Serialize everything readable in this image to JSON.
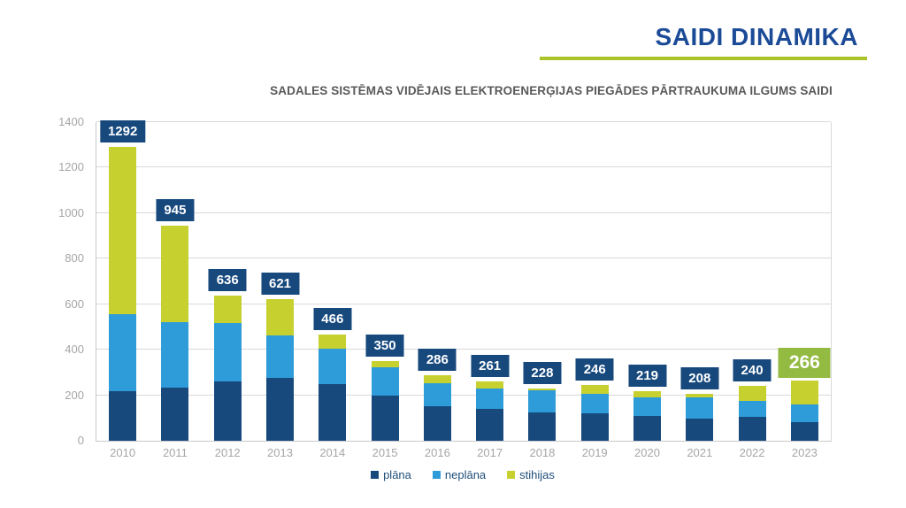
{
  "header": {
    "title": "SAIDI DINAMIKA",
    "title_color": "#1B4A97",
    "underline_color": "#A9C32B"
  },
  "subtitle": "SADALES SISTĒMAS VIDĒJAIS ELEKTROENERĢIJAS PIEGĀDES PĀRTRAUKUMA ILGUMS SAIDI",
  "colors": {
    "label_box": "#17497D",
    "label_box_highlight": "#93BA41",
    "label_text": "#ffffff",
    "axis_text": "#A6A6A6",
    "gridline": "#D9D9D9",
    "legend_text": "#1F4E79",
    "subtitle_text": "#595959"
  },
  "chart_data": {
    "type": "bar",
    "stacked": true,
    "title": "SAIDI DINAMIKA",
    "subtitle": "SADALES SISTĒMAS VIDĒJAIS ELEKTROENERĢIJAS PIEGĀDES PĀRTRAUKUMA ILGUMS SAIDI",
    "categories": [
      "2010",
      "2011",
      "2012",
      "2013",
      "2014",
      "2015",
      "2016",
      "2017",
      "2018",
      "2019",
      "2020",
      "2021",
      "2022",
      "2023"
    ],
    "series": [
      {
        "name": "plāna",
        "color": "#17497D",
        "values": [
          218,
          232,
          261,
          278,
          250,
          200,
          152,
          140,
          124,
          120,
          110,
          98,
          107,
          83
        ]
      },
      {
        "name": "neplāna",
        "color": "#2E9CD8",
        "values": [
          337,
          290,
          257,
          185,
          155,
          123,
          99,
          90,
          96,
          85,
          80,
          92,
          68,
          78
        ]
      },
      {
        "name": "stihijas",
        "color": "#C6D02F",
        "values": [
          737,
          423,
          118,
          158,
          61,
          27,
          35,
          31,
          8,
          41,
          29,
          18,
          65,
          105
        ]
      }
    ],
    "totals": [
      1292,
      945,
      636,
      621,
      466,
      350,
      286,
      261,
      228,
      246,
      219,
      208,
      240,
      266
    ],
    "highlight_last_total": true,
    "xlabel": "",
    "ylabel": "",
    "ylim": [
      0,
      1400
    ],
    "yticks": [
      0,
      200,
      400,
      600,
      800,
      1000,
      1200,
      1400
    ],
    "grid": true,
    "legend_position": "bottom"
  }
}
